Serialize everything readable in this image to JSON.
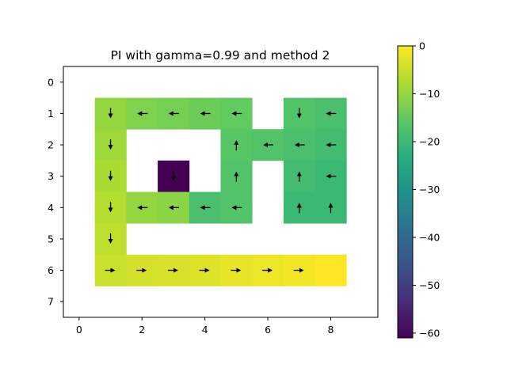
{
  "chart_data": {
    "type": "heatmap",
    "title": "PI with gamma=0.99 and method 2",
    "xlabel": "",
    "ylabel": "",
    "colormap": "viridis",
    "x_ticks": [
      "0",
      "2",
      "4",
      "6",
      "8"
    ],
    "y_ticks": [
      "0",
      "1",
      "2",
      "3",
      "4",
      "5",
      "6",
      "7"
    ],
    "xlim": [
      -0.5,
      9.5
    ],
    "ylim": [
      7.5,
      -0.5
    ],
    "colorbar": {
      "ticks": [
        "0",
        "−10",
        "−20",
        "−30",
        "−40",
        "−50",
        "−60"
      ],
      "tick_values": [
        0,
        -10,
        -20,
        -30,
        -40,
        -50,
        -60
      ],
      "vmin": -61,
      "vmax": 0
    },
    "cells": [
      {
        "row": 1,
        "col": 1,
        "value": -10,
        "arrow": "down"
      },
      {
        "row": 1,
        "col": 2,
        "value": -12,
        "arrow": "left"
      },
      {
        "row": 1,
        "col": 3,
        "value": -13,
        "arrow": "left"
      },
      {
        "row": 1,
        "col": 4,
        "value": -14,
        "arrow": "left"
      },
      {
        "row": 1,
        "col": 5,
        "value": -15,
        "arrow": "left"
      },
      {
        "row": 1,
        "col": 7,
        "value": -17,
        "arrow": "down"
      },
      {
        "row": 1,
        "col": 8,
        "value": -18,
        "arrow": "left"
      },
      {
        "row": 2,
        "col": 1,
        "value": -9,
        "arrow": "down"
      },
      {
        "row": 2,
        "col": 5,
        "value": -16,
        "arrow": "up"
      },
      {
        "row": 2,
        "col": 6,
        "value": -17,
        "arrow": "left"
      },
      {
        "row": 2,
        "col": 7,
        "value": -18,
        "arrow": "left"
      },
      {
        "row": 2,
        "col": 8,
        "value": -19,
        "arrow": "left"
      },
      {
        "row": 3,
        "col": 1,
        "value": -8,
        "arrow": "down"
      },
      {
        "row": 3,
        "col": 3,
        "value": -61,
        "arrow": "down"
      },
      {
        "row": 3,
        "col": 5,
        "value": -17,
        "arrow": "up"
      },
      {
        "row": 3,
        "col": 7,
        "value": -19,
        "arrow": "up"
      },
      {
        "row": 3,
        "col": 8,
        "value": -20,
        "arrow": "left"
      },
      {
        "row": 4,
        "col": 1,
        "value": -7,
        "arrow": "down"
      },
      {
        "row": 4,
        "col": 2,
        "value": -10,
        "arrow": "left"
      },
      {
        "row": 4,
        "col": 3,
        "value": -11,
        "arrow": "left"
      },
      {
        "row": 4,
        "col": 4,
        "value": -18,
        "arrow": "left"
      },
      {
        "row": 4,
        "col": 5,
        "value": -17,
        "arrow": "left"
      },
      {
        "row": 4,
        "col": 7,
        "value": -20,
        "arrow": "up"
      },
      {
        "row": 4,
        "col": 8,
        "value": -20,
        "arrow": "up"
      },
      {
        "row": 5,
        "col": 1,
        "value": -6,
        "arrow": "down"
      },
      {
        "row": 6,
        "col": 1,
        "value": -5,
        "arrow": "right"
      },
      {
        "row": 6,
        "col": 2,
        "value": -4,
        "arrow": "right"
      },
      {
        "row": 6,
        "col": 3,
        "value": -3.5,
        "arrow": "right"
      },
      {
        "row": 6,
        "col": 4,
        "value": -3,
        "arrow": "right"
      },
      {
        "row": 6,
        "col": 5,
        "value": -2,
        "arrow": "right"
      },
      {
        "row": 6,
        "col": 6,
        "value": -1.5,
        "arrow": "right"
      },
      {
        "row": 6,
        "col": 7,
        "value": -1,
        "arrow": "right"
      },
      {
        "row": 6,
        "col": 8,
        "value": 0,
        "arrow": "none"
      }
    ]
  }
}
